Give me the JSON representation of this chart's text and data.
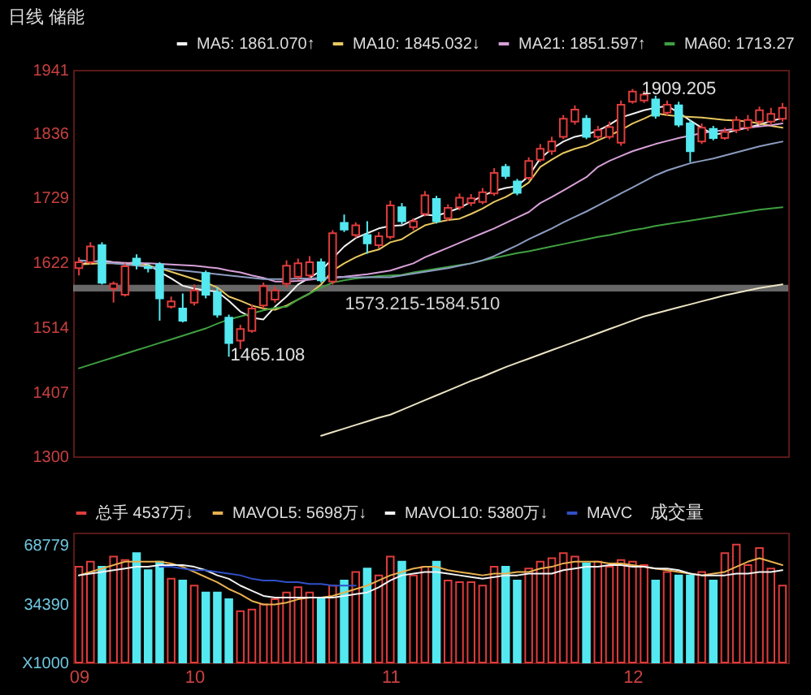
{
  "chart_data": [
    {
      "type": "candlestick",
      "title": "日线  储能",
      "legend": "top right",
      "tick_labels": "y",
      "categories": [
        "09",
        null,
        null,
        null,
        null,
        null,
        null,
        null,
        null,
        null,
        "10",
        null,
        null,
        null,
        null,
        null,
        null,
        null,
        null,
        null,
        null,
        null,
        null,
        null,
        null,
        null,
        null,
        "11",
        null,
        null,
        null,
        null,
        null,
        null,
        null,
        null,
        null,
        null,
        null,
        null,
        null,
        null,
        null,
        null,
        null,
        null,
        null,
        null,
        "12",
        null,
        null,
        null,
        null,
        null,
        null,
        null,
        null,
        null,
        null,
        null,
        null,
        null
      ],
      "ylim": [
        1300,
        1941
      ],
      "yticks": [
        1300,
        1407,
        1514,
        1622,
        1729,
        1836,
        1941
      ],
      "ohlc": [
        [
          1612,
          1630,
          1600,
          1622
        ],
        [
          1622,
          1655,
          1618,
          1648
        ],
        [
          1650,
          1655,
          1585,
          1588
        ],
        [
          1578,
          1590,
          1555,
          1586
        ],
        [
          1568,
          1620,
          1565,
          1615
        ],
        [
          1628,
          1635,
          1610,
          1618
        ],
        [
          1614,
          1620,
          1605,
          1612
        ],
        [
          1618,
          1622,
          1525,
          1562
        ],
        [
          1548,
          1565,
          1545,
          1557
        ],
        [
          1545,
          1570,
          1522,
          1525
        ],
        [
          1555,
          1585,
          1550,
          1575
        ],
        [
          1604,
          1608,
          1562,
          1568
        ],
        [
          1572,
          1580,
          1530,
          1535
        ],
        [
          1530,
          1535,
          1465.108,
          1488
        ],
        [
          1492,
          1518,
          1478,
          1511
        ],
        [
          1508,
          1552,
          1505,
          1545
        ],
        [
          1550,
          1588,
          1545,
          1582
        ],
        [
          1560,
          1582,
          1555,
          1575
        ],
        [
          1586,
          1625,
          1580,
          1616
        ],
        [
          1598,
          1628,
          1592,
          1620
        ],
        [
          1600,
          1632,
          1595,
          1622
        ],
        [
          1622,
          1628,
          1588,
          1592
        ],
        [
          1590,
          1675,
          1585,
          1670
        ],
        [
          1687,
          1701,
          1672,
          1676
        ],
        [
          1667,
          1688,
          1662,
          1683
        ],
        [
          1667,
          1690,
          1636,
          1653
        ],
        [
          1650,
          1672,
          1645,
          1665
        ],
        [
          1664,
          1724,
          1660,
          1716
        ],
        [
          1713,
          1720,
          1685,
          1690
        ],
        [
          1680,
          1695,
          1675,
          1690
        ],
        [
          1702,
          1740,
          1698,
          1733
        ],
        [
          1727,
          1732,
          1686,
          1690
        ],
        [
          1695,
          1718,
          1690,
          1712
        ],
        [
          1713,
          1736,
          1708,
          1729
        ],
        [
          1720,
          1735,
          1715,
          1728
        ],
        [
          1722,
          1745,
          1718,
          1738
        ],
        [
          1736,
          1778,
          1732,
          1770
        ],
        [
          1780,
          1785,
          1760,
          1765
        ],
        [
          1756,
          1760,
          1733,
          1737
        ],
        [
          1762,
          1796,
          1758,
          1790
        ],
        [
          1792,
          1818,
          1788,
          1810
        ],
        [
          1806,
          1830,
          1800,
          1822
        ],
        [
          1830,
          1866,
          1826,
          1860
        ],
        [
          1855,
          1882,
          1850,
          1875
        ],
        [
          1860,
          1866,
          1826,
          1830
        ],
        [
          1830,
          1848,
          1826,
          1841
        ],
        [
          1830,
          1855,
          1826,
          1846
        ],
        [
          1820,
          1890,
          1815,
          1883
        ],
        [
          1888,
          1909.205,
          1885,
          1905
        ],
        [
          1890,
          1906,
          1886,
          1900
        ],
        [
          1892,
          1898,
          1860,
          1865
        ],
        [
          1870,
          1890,
          1865,
          1883
        ],
        [
          1882,
          1888,
          1846,
          1850
        ],
        [
          1852,
          1858,
          1788,
          1806
        ],
        [
          1822,
          1852,
          1818,
          1845
        ],
        [
          1843,
          1848,
          1824,
          1828
        ],
        [
          1828,
          1845,
          1825,
          1838
        ],
        [
          1841,
          1864,
          1836,
          1858
        ],
        [
          1845,
          1866,
          1840,
          1858
        ],
        [
          1855,
          1880,
          1850,
          1874
        ],
        [
          1855,
          1878,
          1850,
          1868
        ],
        [
          1860,
          1886,
          1855,
          1878
        ]
      ],
      "colors": [
        "#e03c3c",
        "#e03c3c",
        "#54e8f0",
        "#e03c3c",
        "#e03c3c",
        "#54e8f0",
        "#54e8f0",
        "#54e8f0",
        "#e03c3c",
        "#54e8f0",
        "#e03c3c",
        "#54e8f0",
        "#54e8f0",
        "#54e8f0",
        "#e03c3c",
        "#e03c3c",
        "#e03c3c",
        "#e03c3c",
        "#e03c3c",
        "#e03c3c",
        "#e03c3c",
        "#54e8f0",
        "#e03c3c",
        "#54e8f0",
        "#e03c3c",
        "#54e8f0",
        "#e03c3c",
        "#e03c3c",
        "#54e8f0",
        "#e03c3c",
        "#e03c3c",
        "#54e8f0",
        "#e03c3c",
        "#e03c3c",
        "#e03c3c",
        "#e03c3c",
        "#e03c3c",
        "#54e8f0",
        "#54e8f0",
        "#e03c3c",
        "#e03c3c",
        "#e03c3c",
        "#e03c3c",
        "#e03c3c",
        "#54e8f0",
        "#e03c3c",
        "#e03c3c",
        "#e03c3c",
        "#e03c3c",
        "#e03c3c",
        "#54e8f0",
        "#e03c3c",
        "#54e8f0",
        "#54e8f0",
        "#e03c3c",
        "#54e8f0",
        "#e03c3c",
        "#e03c3c",
        "#e03c3c",
        "#e03c3c",
        "#e03c3c",
        "#e03c3c"
      ],
      "series": [
        {
          "type": "line",
          "name": "MA5: 1861.070↑",
          "color": "#f2f2f2",
          "values": [
            1618,
            1622,
            1625,
            1622,
            1620,
            1622,
            1618,
            1606,
            1595,
            1583,
            1578,
            1575,
            1573,
            1558,
            1540,
            1530,
            1527,
            1548,
            1565,
            1585,
            1596,
            1608,
            1628,
            1648,
            1662,
            1670,
            1678,
            1682,
            1683,
            1692,
            1701,
            1699,
            1705,
            1712,
            1722,
            1732,
            1740,
            1745,
            1748,
            1765,
            1794,
            1810,
            1822,
            1830,
            1834,
            1840,
            1850,
            1862,
            1868,
            1874,
            1878,
            1881,
            1870,
            1857,
            1845,
            1834,
            1836,
            1841,
            1845,
            1850,
            1856,
            1861
          ]
        },
        {
          "type": "line",
          "name": "MA10: 1845.032↓",
          "color": "#e8c860",
          "values": [
            1618,
            1619,
            1620,
            1620,
            1619,
            1618,
            1616,
            1612,
            1606,
            1600,
            1594,
            1588,
            1580,
            1565,
            1558,
            1550,
            1545,
            1543,
            1550,
            1560,
            1570,
            1585,
            1608,
            1620,
            1630,
            1638,
            1643,
            1655,
            1660,
            1672,
            1683,
            1688,
            1692,
            1694,
            1702,
            1711,
            1722,
            1730,
            1741,
            1754,
            1780,
            1792,
            1803,
            1810,
            1815,
            1824,
            1832,
            1841,
            1852,
            1860,
            1869,
            1866,
            1864,
            1863,
            1862,
            1860,
            1858,
            1857,
            1855,
            1852,
            1848,
            1845
          ]
        },
        {
          "type": "line",
          "name": "MA21: 1851.597↑",
          "color": "#d8a0d8",
          "values": [
            1625,
            1624,
            1623,
            1622,
            1621,
            1620,
            1620,
            1619,
            1618,
            1617,
            1616,
            1614,
            1612,
            1608,
            1605,
            1600,
            1596,
            1590,
            1590,
            1591,
            1593,
            1595,
            1597,
            1598,
            1600,
            1602,
            1605,
            1608,
            1614,
            1620,
            1630,
            1638,
            1646,
            1654,
            1662,
            1670,
            1678,
            1687,
            1696,
            1705,
            1720,
            1730,
            1741,
            1752,
            1763,
            1780,
            1790,
            1798,
            1806,
            1812,
            1818,
            1823,
            1828,
            1832,
            1836,
            1839,
            1841,
            1843,
            1845,
            1847,
            1849,
            1852
          ]
        },
        {
          "type": "line",
          "name": "MA60: 1713.27",
          "color": "#3fa040",
          "values": [
            1446,
            1452,
            1458,
            1464,
            1470,
            1476,
            1482,
            1488,
            1494,
            1500,
            1506,
            1512,
            1520,
            1527,
            1532,
            1537,
            1542,
            1546,
            1548,
            1560,
            1570,
            1580,
            1588,
            1592,
            1595,
            1597,
            1599,
            1600,
            1601,
            1605,
            1608,
            1611,
            1614,
            1617,
            1620,
            1625,
            1629,
            1633,
            1637,
            1640,
            1644,
            1648,
            1652,
            1656,
            1660,
            1664,
            1667,
            1671,
            1675,
            1678,
            1682,
            1685,
            1688,
            1691,
            1694,
            1697,
            1700,
            1703,
            1706,
            1709,
            1711,
            1713
          ]
        },
        {
          "type": "line",
          "color": "#8c9cc0",
          "values": [
            1625,
            1624,
            1622,
            1620,
            1618,
            1616,
            1614,
            1612,
            1610,
            1608,
            1606,
            1604,
            1602,
            1600,
            1598,
            1596,
            1594,
            1594,
            1594,
            1595,
            1595,
            1596,
            1596,
            1597,
            1597,
            1597,
            1597,
            1597,
            1600,
            1603,
            1606,
            1609,
            1612,
            1616,
            1620,
            1625,
            1632,
            1641,
            1650,
            1660,
            1669,
            1678,
            1688,
            1697,
            1706,
            1716,
            1726,
            1736,
            1746,
            1756,
            1766,
            1774,
            1780,
            1786,
            1790,
            1794,
            1799,
            1804,
            1809,
            1814,
            1818,
            1822
          ]
        },
        {
          "type": "line",
          "color": "#ece4c4",
          "values": [
            null,
            null,
            null,
            null,
            null,
            null,
            null,
            null,
            null,
            null,
            null,
            null,
            null,
            null,
            null,
            null,
            null,
            null,
            null,
            null,
            null,
            1334,
            1340,
            1346,
            1352,
            1358,
            1364,
            1369,
            1377,
            1385,
            1393,
            1401,
            1409,
            1417,
            1425,
            1432,
            1440,
            1448,
            1455,
            1462,
            1469,
            1476,
            1483,
            1490,
            1497,
            1504,
            1511,
            1518,
            1525,
            1532,
            1537,
            1542,
            1547,
            1552,
            1557,
            1562,
            1567,
            1571,
            1575,
            1579,
            1582,
            1585
          ]
        }
      ],
      "bands": [
        {
          "axis": "y",
          "from": 1573.215,
          "to": 1584.51,
          "label": "1573.215-1584.510",
          "color": "#8a8a8a"
        }
      ],
      "annotations": [
        "1909.205",
        "1465.108"
      ]
    },
    {
      "type": "bar",
      "legend": "top left",
      "categories": [
        "09",
        null,
        null,
        null,
        null,
        null,
        null,
        null,
        null,
        null,
        "10",
        null,
        null,
        null,
        null,
        null,
        null,
        null,
        null,
        null,
        null,
        null,
        null,
        null,
        null,
        null,
        null,
        "11",
        null,
        null,
        null,
        null,
        null,
        null,
        null,
        null,
        null,
        null,
        null,
        null,
        null,
        null,
        null,
        null,
        null,
        null,
        null,
        null,
        "12",
        null,
        null,
        null,
        null,
        null,
        null,
        null,
        null,
        null,
        null,
        null,
        null,
        null
      ],
      "ylim": [
        0,
        76000
      ],
      "yticks": [
        {
          "value": 0,
          "label": "X1000"
        },
        34390,
        68779
      ],
      "series": [
        {
          "name": "总手 4537万↓",
          "color": "#e03c3c",
          "colors": [
            "#e03c3c",
            "#e03c3c",
            "#54e8f0",
            "#e03c3c",
            "#e03c3c",
            "#54e8f0",
            "#54e8f0",
            "#54e8f0",
            "#e03c3c",
            "#54e8f0",
            "#e03c3c",
            "#54e8f0",
            "#54e8f0",
            "#54e8f0",
            "#e03c3c",
            "#e03c3c",
            "#e03c3c",
            "#e03c3c",
            "#e03c3c",
            "#e03c3c",
            "#e03c3c",
            "#54e8f0",
            "#e03c3c",
            "#54e8f0",
            "#e03c3c",
            "#54e8f0",
            "#e03c3c",
            "#e03c3c",
            "#54e8f0",
            "#e03c3c",
            "#e03c3c",
            "#54e8f0",
            "#e03c3c",
            "#e03c3c",
            "#e03c3c",
            "#e03c3c",
            "#e03c3c",
            "#54e8f0",
            "#54e8f0",
            "#e03c3c",
            "#e03c3c",
            "#e03c3c",
            "#e03c3c",
            "#e03c3c",
            "#54e8f0",
            "#e03c3c",
            "#e03c3c",
            "#e03c3c",
            "#e03c3c",
            "#e03c3c",
            "#54e8f0",
            "#e03c3c",
            "#54e8f0",
            "#54e8f0",
            "#e03c3c",
            "#54e8f0",
            "#e03c3c",
            "#e03c3c",
            "#e03c3c",
            "#e03c3c",
            "#e03c3c",
            "#e03c3c"
          ],
          "values": [
            56000,
            59000,
            56000,
            62000,
            60000,
            64000,
            54000,
            59000,
            49000,
            48000,
            45000,
            41000,
            41000,
            37000,
            30000,
            31000,
            34000,
            37000,
            41000,
            44000,
            41000,
            37000,
            45000,
            48000,
            53000,
            55000,
            51000,
            62000,
            59000,
            51000,
            56000,
            59000,
            48000,
            47000,
            47000,
            45000,
            56000,
            56000,
            48000,
            55000,
            59000,
            61000,
            64000,
            62000,
            58000,
            59000,
            56000,
            60000,
            59000,
            57000,
            48000,
            53000,
            51000,
            51000,
            53000,
            48000,
            64000,
            69000,
            57000,
            67000,
            55000,
            45000
          ]
        },
        {
          "type": "line",
          "name": "MAVOL5: 5698万↓",
          "color": "#e8b050",
          "values": [
            51000,
            53000,
            55000,
            57000,
            59000,
            59000,
            59000,
            59000,
            58000,
            56000,
            53000,
            50000,
            47000,
            43000,
            40000,
            36000,
            34000,
            34000,
            35000,
            37000,
            38000,
            38000,
            39000,
            41000,
            43000,
            45000,
            48000,
            51000,
            53000,
            55000,
            56000,
            56000,
            54000,
            53000,
            52000,
            51000,
            52000,
            52000,
            53000,
            53000,
            55000,
            56000,
            58000,
            59000,
            59000,
            59000,
            58000,
            58000,
            57000,
            56000,
            55000,
            54000,
            53000,
            52000,
            51000,
            52000,
            53000,
            56000,
            59000,
            61000,
            59000,
            57000
          ]
        },
        {
          "type": "line",
          "name": "MAVOL10: 5380万↓",
          "color": "#f2f2f2",
          "values": [
            51000,
            52000,
            53000,
            54000,
            55000,
            56000,
            56000,
            57000,
            57000,
            57000,
            56000,
            54000,
            51000,
            49000,
            45000,
            42000,
            39000,
            38000,
            38000,
            38000,
            38000,
            38000,
            38000,
            39000,
            40000,
            41000,
            44000,
            48000,
            51000,
            52000,
            53000,
            53000,
            52000,
            51000,
            50000,
            49000,
            50000,
            51000,
            51000,
            52000,
            52000,
            52000,
            54000,
            55000,
            56000,
            56000,
            57000,
            57000,
            56000,
            56000,
            55000,
            55000,
            54000,
            52000,
            51000,
            51000,
            51000,
            52000,
            52000,
            53000,
            53000,
            54000
          ]
        },
        {
          "type": "line",
          "name": "MAVC",
          "color": "#3050c8",
          "values": [
            null,
            null,
            null,
            null,
            null,
            null,
            null,
            56000,
            56000,
            55000,
            54000,
            54000,
            53000,
            52000,
            51000,
            49000,
            48000,
            48000,
            47000,
            47000,
            46000,
            46000,
            45000,
            45000,
            45000,
            null,
            null,
            null,
            null,
            null,
            null,
            null,
            null,
            null,
            null,
            null,
            null,
            null,
            null,
            null,
            null,
            null,
            null,
            null,
            null,
            null,
            null,
            null,
            null,
            null,
            null,
            null,
            null,
            null,
            null,
            null,
            null,
            null,
            null,
            null,
            null,
            null
          ]
        }
      ],
      "annotations": [
        "成交量"
      ]
    }
  ]
}
